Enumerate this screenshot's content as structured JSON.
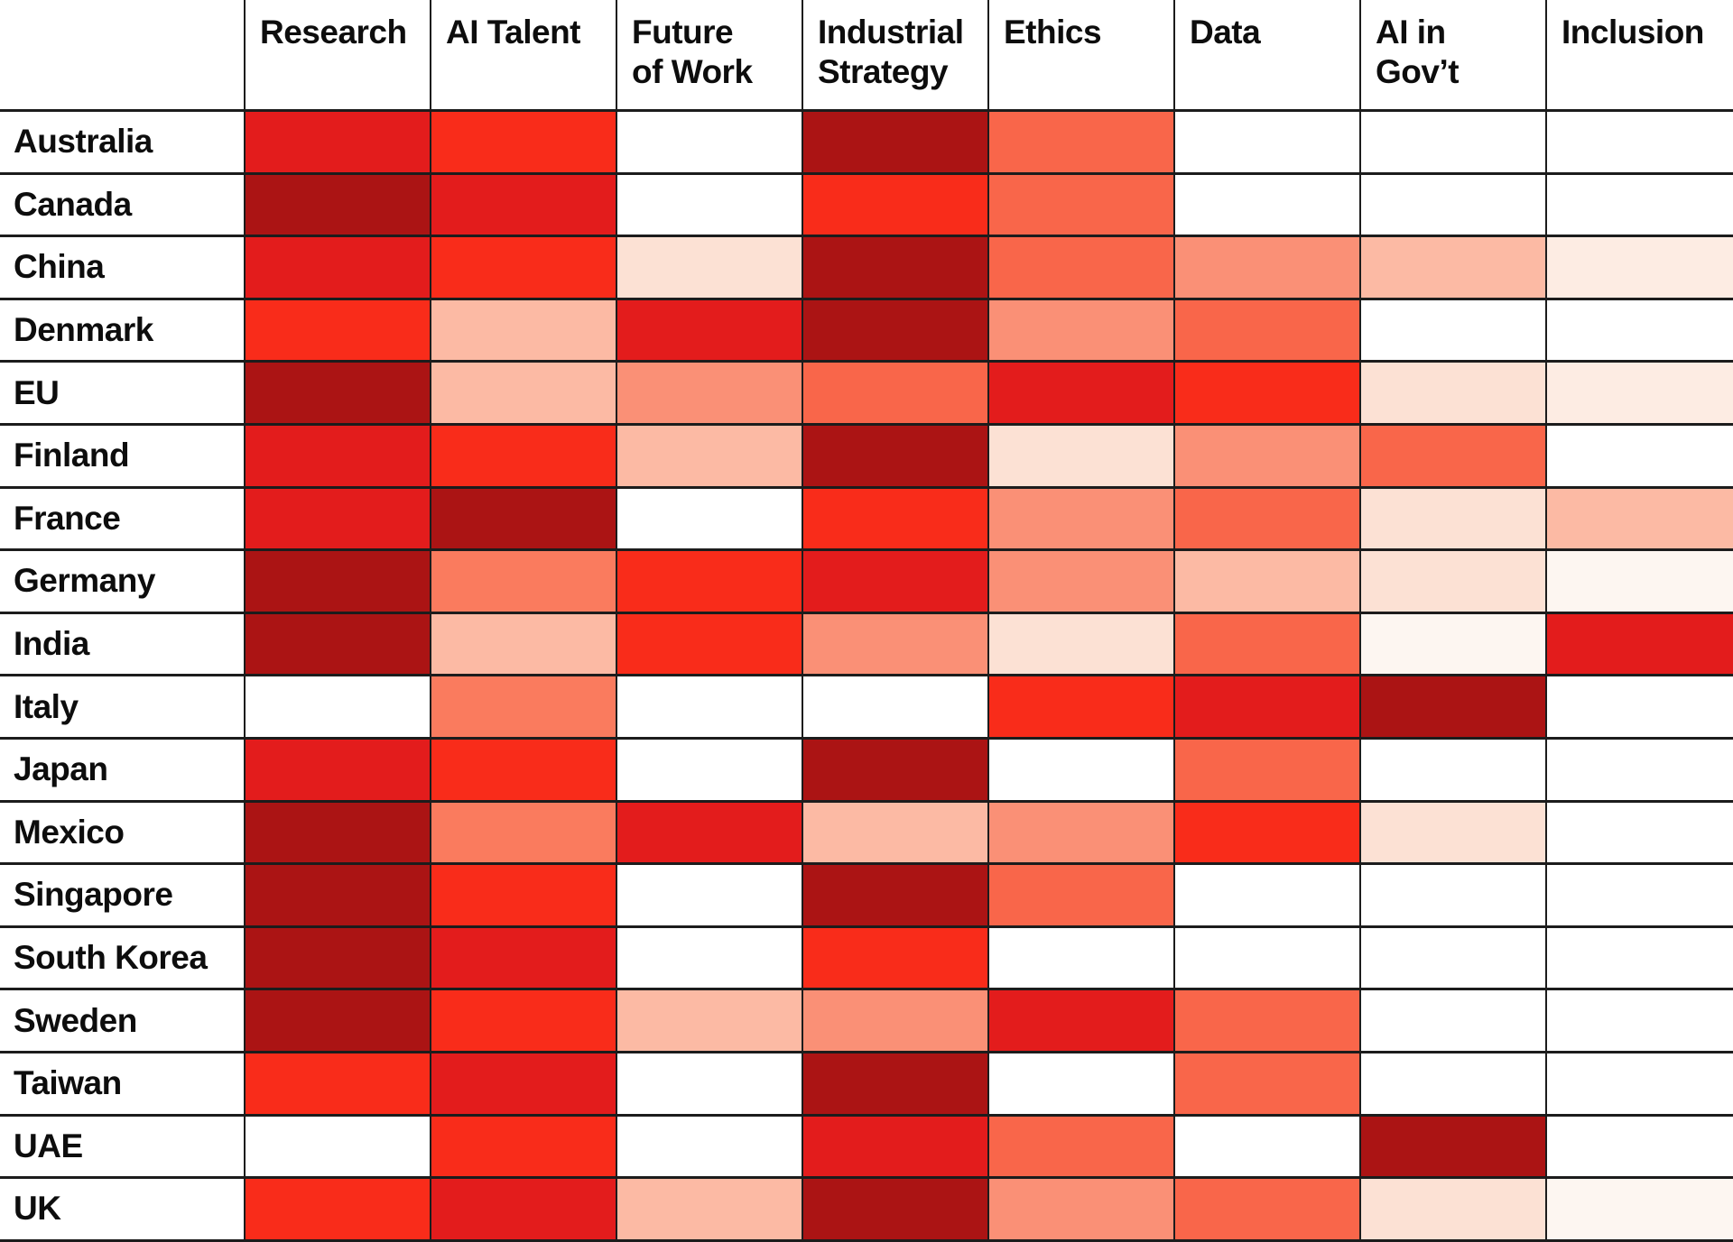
{
  "page": {
    "background": "#ffffff",
    "grid_line_color": "#1c1c1c",
    "text_color": "#0d0d0d"
  },
  "chart_data": {
    "type": "heatmap",
    "title": "",
    "columns": [
      "Research",
      "AI Talent",
      "Future\nof Work",
      "Industrial\nStrategy",
      "Ethics",
      "Data",
      "AI in\nGov’t",
      "Inclusion"
    ],
    "rows": [
      "Australia",
      "Canada",
      "China",
      "Denmark",
      "EU",
      "Finland",
      "France",
      "Germany",
      "India",
      "Italy",
      "Japan",
      "Mexico",
      "Singapore",
      "South Korea",
      "Sweden",
      "Taiwan",
      "UAE",
      "UK"
    ],
    "value_scale": {
      "min": 0,
      "max": 10,
      "meaning": "0 = blank (white), 10 = darkest red; intensity estimated from cell color"
    },
    "palette": {
      "0": "#ffffff",
      "1": "#fdf6f1",
      "2": "#fdece3",
      "3": "#fce1d4",
      "4": "#fcbaa4",
      "5": "#fa9076",
      "6": "#fa7b5e",
      "7": "#f9664a",
      "8": "#f92c1a",
      "9": "#e31c1c",
      "10": "#ab1414"
    },
    "values": [
      [
        9,
        8,
        0,
        10,
        7,
        0,
        0,
        0
      ],
      [
        10,
        9,
        0,
        8,
        7,
        0,
        0,
        0
      ],
      [
        9,
        8,
        3,
        10,
        7,
        5,
        4,
        2
      ],
      [
        8,
        4,
        9,
        10,
        5,
        7,
        0,
        0
      ],
      [
        10,
        4,
        5,
        7,
        9,
        8,
        3,
        2
      ],
      [
        9,
        8,
        4,
        10,
        3,
        5,
        7,
        0
      ],
      [
        9,
        10,
        0,
        8,
        5,
        7,
        3,
        4
      ],
      [
        10,
        6,
        8,
        9,
        5,
        4,
        3,
        1
      ],
      [
        10,
        4,
        8,
        5,
        3,
        7,
        1,
        9
      ],
      [
        0,
        6,
        0,
        0,
        8,
        9,
        10,
        0
      ],
      [
        9,
        8,
        0,
        10,
        0,
        7,
        0,
        0
      ],
      [
        10,
        6,
        9,
        4,
        5,
        8,
        3,
        0
      ],
      [
        10,
        8,
        0,
        10,
        7,
        0,
        0,
        0
      ],
      [
        10,
        9,
        0,
        8,
        0,
        0,
        0,
        0
      ],
      [
        10,
        8,
        4,
        5,
        9,
        7,
        0,
        0
      ],
      [
        8,
        9,
        0,
        10,
        0,
        7,
        0,
        0
      ],
      [
        0,
        8,
        0,
        9,
        7,
        0,
        10,
        0
      ],
      [
        8,
        9,
        4,
        10,
        5,
        7,
        3,
        1
      ]
    ],
    "legend_position": "none",
    "gridlines": true
  }
}
